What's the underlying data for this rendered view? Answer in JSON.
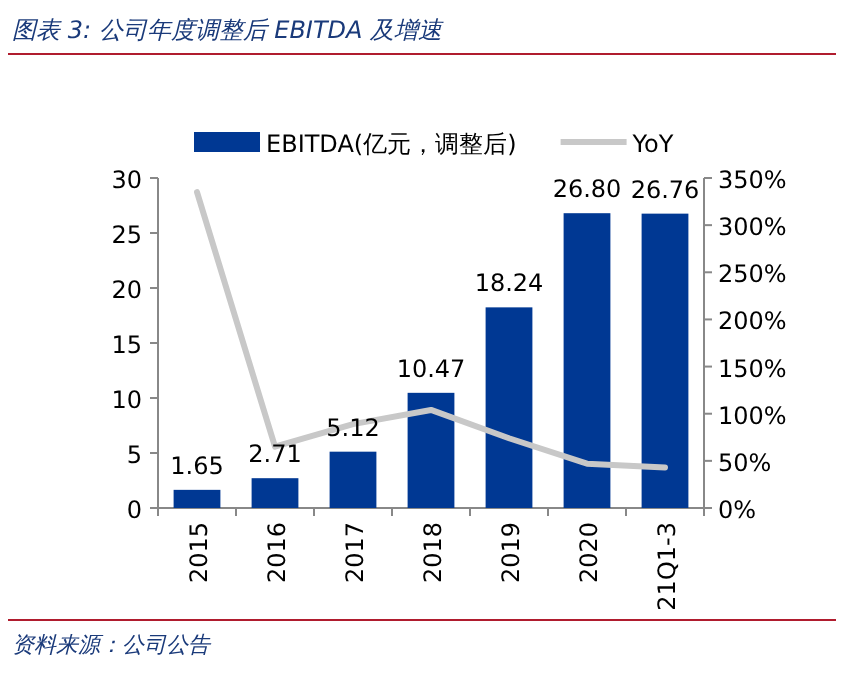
{
  "chart_data": {
    "type": "bar",
    "title": "图表 3: 公司年度调整后 EBITDA 及增速",
    "categories": [
      "2015",
      "2016",
      "2017",
      "2018",
      "2019",
      "2020",
      "21Q1-3"
    ],
    "series": [
      {
        "name": "EBITDA(亿元，调整后)",
        "color": "#003893",
        "values": [
          1.65,
          2.71,
          5.12,
          10.47,
          18.24,
          26.8,
          26.76
        ],
        "value_labels": [
          "1.65",
          "2.71",
          "5.12",
          "10.47",
          "18.24",
          "26.80",
          "26.76"
        ]
      },
      {
        "name": "YoY",
        "type": "line",
        "axis": "y2",
        "color": "#c8c8c8",
        "values": [
          335,
          65,
          89,
          104,
          74,
          47,
          43
        ]
      }
    ],
    "ylim": [
      0,
      30
    ],
    "yticks": [
      0,
      5,
      10,
      15,
      20,
      25,
      30
    ],
    "y2lim": [
      0,
      350
    ],
    "y2ticks": [
      {
        "value": 0,
        "label": "0%"
      },
      {
        "value": 50,
        "label": "50%"
      },
      {
        "value": 100,
        "label": "100%"
      },
      {
        "value": 150,
        "label": "150%"
      },
      {
        "value": 200,
        "label": "200%"
      },
      {
        "value": 250,
        "label": "250%"
      },
      {
        "value": 300,
        "label": "300%"
      },
      {
        "value": 350,
        "label": "350%"
      }
    ],
    "grid": false,
    "legend": "top",
    "annotations": [
      "资料来源：公司公告"
    ]
  }
}
